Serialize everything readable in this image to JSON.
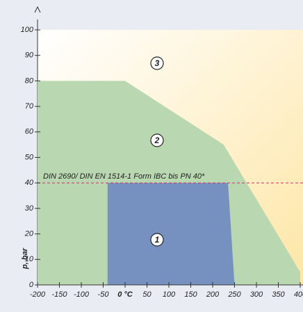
{
  "chart_data": {
    "type": "area",
    "y_label": "p, bar",
    "xlim": [
      -200,
      400
    ],
    "ylim": [
      0,
      100
    ],
    "xticks": [
      -200,
      -150,
      -100,
      -50,
      {
        "value": 0,
        "label": "0 °C"
      },
      50,
      100,
      150,
      200,
      250,
      300,
      350,
      400
    ],
    "yticks": [
      0,
      10,
      20,
      30,
      40,
      50,
      60,
      70,
      80,
      90,
      100
    ],
    "background": {
      "label": "3",
      "colors": [
        "#ffffff",
        "#fde6a6"
      ]
    },
    "series": [
      {
        "label": "2",
        "color": "#b9d7b0",
        "x": [
          -200,
          -200,
          0,
          225,
          400,
          400
        ],
        "values": [
          0,
          80,
          80,
          55,
          5,
          0
        ]
      },
      {
        "label": "1",
        "color": "#7690bf",
        "x": [
          -40,
          -40,
          235,
          250
        ],
        "values": [
          0,
          40,
          40,
          0
        ]
      }
    ],
    "reference_line": {
      "value": 40,
      "label": "DIN 2690/ DIN EN 1514-1 Form IBC bis PN 40*",
      "color": "#d0306a"
    }
  }
}
